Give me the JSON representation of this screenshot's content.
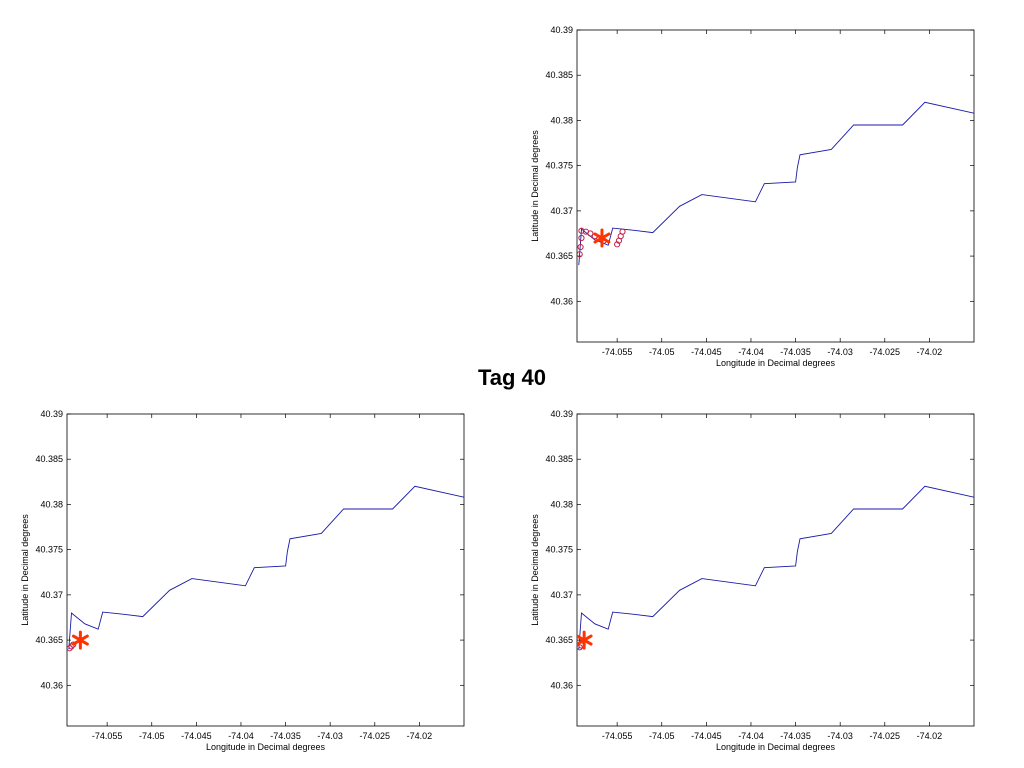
{
  "figure": {
    "title": "Tag 40"
  },
  "track": [
    [
      -74.0593,
      40.364
    ],
    [
      -74.059,
      40.368
    ],
    [
      -74.0575,
      40.3668
    ],
    [
      -74.056,
      40.3662
    ],
    [
      -74.0555,
      40.3681
    ],
    [
      -74.0535,
      40.3679
    ],
    [
      -74.051,
      40.3676
    ],
    [
      -74.048,
      40.3705
    ],
    [
      -74.0455,
      40.3718
    ],
    [
      -74.0395,
      40.371
    ],
    [
      -74.0385,
      40.373
    ],
    [
      -74.035,
      40.3732
    ],
    [
      -74.0348,
      40.3748
    ],
    [
      -74.0345,
      40.3762
    ],
    [
      -74.031,
      40.3768
    ],
    [
      -74.0285,
      40.3795
    ],
    [
      -74.023,
      40.3795
    ],
    [
      -74.0205,
      40.382
    ],
    [
      -74.015,
      40.3808
    ]
  ],
  "chart_data": [
    {
      "type": "line",
      "position": "top-right",
      "xlabel": "Longitude in Decimal degrees",
      "ylabel": "Latitude in Decimal degrees",
      "xlim": [
        -74.0595,
        -74.015
      ],
      "ylim": [
        40.3555,
        40.39
      ],
      "xticks": [
        -74.055,
        -74.05,
        -74.045,
        -74.04,
        -74.035,
        -74.03,
        -74.025,
        -74.02
      ],
      "xtick_labels": [
        "-74.055",
        "-74.05",
        "-74.045",
        "-74.04",
        "-74.035",
        "-74.03",
        "-74.025",
        "-74.02"
      ],
      "yticks": [
        40.36,
        40.365,
        40.37,
        40.375,
        40.38,
        40.385,
        40.39
      ],
      "ytick_labels": [
        "40.36",
        "40.365",
        "40.37",
        "40.375",
        "40.38",
        "40.385",
        "40.39"
      ],
      "track_color": "#1a1aa8",
      "detections": [
        [
          -74.0592,
          40.3652
        ],
        [
          -74.0591,
          40.366
        ],
        [
          -74.059,
          40.367
        ],
        [
          -74.059,
          40.3678
        ],
        [
          -74.0585,
          40.3677
        ],
        [
          -74.058,
          40.3675
        ],
        [
          -74.0575,
          40.3672
        ],
        [
          -74.057,
          40.3669
        ],
        [
          -74.0565,
          40.3667
        ],
        [
          -74.055,
          40.3663
        ],
        [
          -74.0548,
          40.3667
        ],
        [
          -74.0546,
          40.3672
        ],
        [
          -74.0544,
          40.3677
        ]
      ],
      "detection_color": "#c0204a",
      "marker": [
        -74.0567,
        40.367
      ],
      "marker_color": "#ff3300"
    },
    {
      "type": "line",
      "position": "bottom-left",
      "xlabel": "Longitude in Decimal degrees",
      "ylabel": "Latitude in Decimal degrees",
      "xlim": [
        -74.0595,
        -74.015
      ],
      "ylim": [
        40.3555,
        40.39
      ],
      "xticks": [
        -74.055,
        -74.05,
        -74.045,
        -74.04,
        -74.035,
        -74.03,
        -74.025,
        -74.02
      ],
      "xtick_labels": [
        "-74.055",
        "-74.05",
        "-74.045",
        "-74.04",
        "-74.035",
        "-74.03",
        "-74.025",
        "-74.02"
      ],
      "yticks": [
        40.36,
        40.365,
        40.37,
        40.375,
        40.38,
        40.385,
        40.39
      ],
      "ytick_labels": [
        "40.36",
        "40.365",
        "40.37",
        "40.375",
        "40.38",
        "40.385",
        "40.39"
      ],
      "track_color": "#1a1aa8",
      "detections": [
        [
          -74.0592,
          40.3641
        ],
        [
          -74.059,
          40.3643
        ],
        [
          -74.0588,
          40.3645
        ]
      ],
      "detection_color": "#c0204a",
      "marker": [
        -74.058,
        40.365
      ],
      "marker_color": "#ff3300"
    },
    {
      "type": "line",
      "position": "bottom-right",
      "xlabel": "Longitude in Decimal degrees",
      "ylabel": "Latitude in Decimal degrees",
      "xlim": [
        -74.0595,
        -74.015
      ],
      "ylim": [
        40.3555,
        40.39
      ],
      "xticks": [
        -74.055,
        -74.05,
        -74.045,
        -74.04,
        -74.035,
        -74.03,
        -74.025,
        -74.02
      ],
      "xtick_labels": [
        "-74.055",
        "-74.05",
        "-74.045",
        "-74.04",
        "-74.035",
        "-74.03",
        "-74.025",
        "-74.02"
      ],
      "yticks": [
        40.36,
        40.365,
        40.37,
        40.375,
        40.38,
        40.385,
        40.39
      ],
      "ytick_labels": [
        "40.36",
        "40.365",
        "40.37",
        "40.375",
        "40.38",
        "40.385",
        "40.39"
      ],
      "track_color": "#1a1aa8",
      "detections": [
        [
          -74.0592,
          40.3642
        ],
        [
          -74.059,
          40.3644
        ]
      ],
      "detection_color": "#c0204a",
      "marker": [
        -74.0587,
        40.365
      ],
      "marker_color": "#ff3300"
    }
  ]
}
